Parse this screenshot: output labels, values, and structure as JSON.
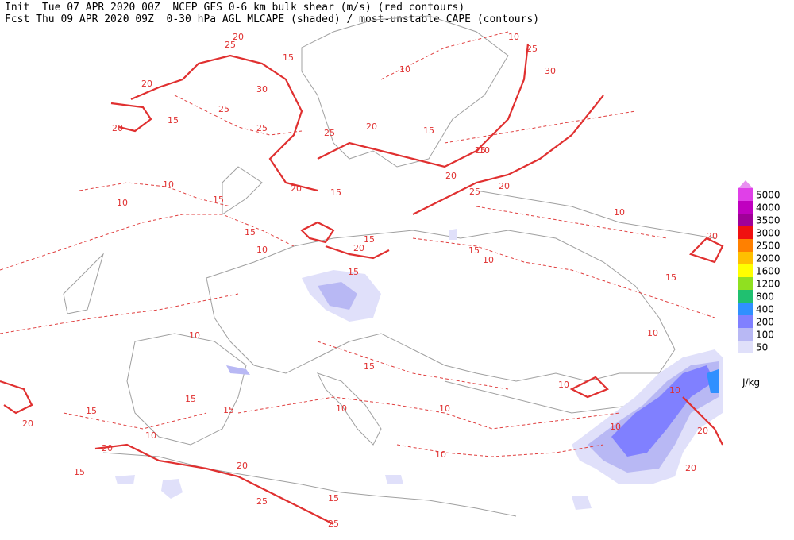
{
  "header": {
    "init": "Init  Tue 07 APR 2020 00Z  NCEP GFS 0-6 km bulk shear (m/s) (red contours)",
    "fcst": "Fcst Thu 09 APR 2020 09Z  0-30 hPa AGL MLCAPE (shaded) / most-unstable CAPE (contours)"
  },
  "legend": {
    "top_arrow_color": "#e890f0",
    "items": [
      {
        "label": 5000,
        "color": "#e040e8"
      },
      {
        "label": 4000,
        "color": "#c000c0"
      },
      {
        "label": 3500,
        "color": "#a00098"
      },
      {
        "label": 3000,
        "color": "#f01010"
      },
      {
        "label": 2500,
        "color": "#ff8000"
      },
      {
        "label": 2000,
        "color": "#ffc000"
      },
      {
        "label": 1600,
        "color": "#ffff00"
      },
      {
        "label": 1200,
        "color": "#90e020"
      },
      {
        "label": 800,
        "color": "#20c070"
      },
      {
        "label": 400,
        "color": "#3090ff"
      },
      {
        "label": 200,
        "color": "#8080ff"
      },
      {
        "label": 100,
        "color": "#b8b8f4"
      },
      {
        "label": 50,
        "color": "#e0e0fa"
      }
    ],
    "unit": "J/kg"
  },
  "map": {
    "contour_labels": [
      20,
      25,
      15,
      30,
      25,
      25,
      20,
      20,
      15,
      10,
      10,
      15,
      20,
      25,
      20,
      15,
      25,
      20,
      25,
      20,
      15,
      15,
      20,
      15,
      15,
      10,
      10,
      10,
      10,
      25,
      30,
      15,
      10,
      10,
      20,
      15,
      10,
      10,
      15,
      10,
      10,
      10,
      15,
      15,
      15,
      20,
      10,
      20,
      15,
      20,
      25,
      15,
      25,
      10,
      10,
      10,
      20,
      20
    ]
  }
}
